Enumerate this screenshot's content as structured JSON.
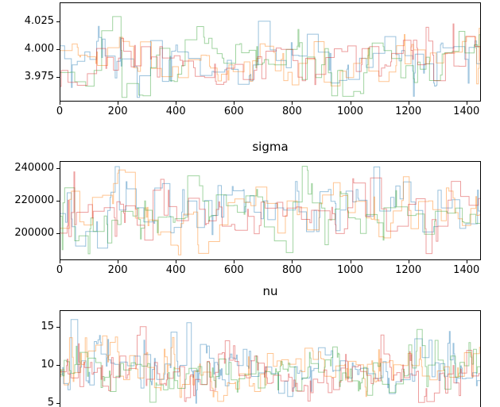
{
  "figure": {
    "background": "#ffffff",
    "n_chains": 4,
    "chain_colors": [
      "#1f77b4",
      "#ff7f0e",
      "#2ca02c",
      "#d62728"
    ],
    "chain_alpha": 0.45,
    "spine_color": "#000000"
  },
  "chart_data": [
    {
      "type": "line",
      "title": "",
      "drawstyle": "steps",
      "legend": "none",
      "grid": false,
      "xlim": [
        0,
        1450
      ],
      "ylim": [
        3.953,
        4.042
      ],
      "xticks": [
        0,
        200,
        400,
        600,
        800,
        1000,
        1200,
        1400
      ],
      "xtick_labels": [
        "0",
        "200",
        "400",
        "600",
        "800",
        "1000",
        "1200",
        "1400"
      ],
      "yticks": [
        3.975,
        4.0,
        4.025
      ],
      "ytick_labels": [
        "3.975",
        "4.000",
        "4.025"
      ],
      "show_x_axis": true,
      "n_samples": 1500,
      "approx_center": 3.995,
      "approx_range": [
        3.96,
        4.035
      ],
      "gen": {
        "seed": 47,
        "center": 3.995,
        "spread": 0.011,
        "clamp": [
          3.957,
          4.038
        ],
        "n_steps": 500,
        "hold_pow": 1.6,
        "hold_max": 14,
        "big_p": 0.1,
        "big_f": 2.0,
        "log": false
      }
    },
    {
      "type": "line",
      "title": "sigma",
      "drawstyle": "steps",
      "legend": "none",
      "grid": false,
      "xlim": [
        0,
        1450
      ],
      "ylim": [
        183400,
        244400
      ],
      "xticks": [
        0,
        200,
        400,
        600,
        800,
        1000,
        1200,
        1400
      ],
      "xtick_labels": [
        "0",
        "200",
        "400",
        "600",
        "800",
        "1000",
        "1200",
        "1400"
      ],
      "yticks": [
        200000,
        220000,
        240000
      ],
      "ytick_labels": [
        "200000",
        "220000",
        "240000"
      ],
      "show_x_axis": true,
      "n_samples": 1500,
      "approx_center": 213000,
      "approx_range": [
        190000,
        240000
      ],
      "gen": {
        "seed": 83,
        "center": 213000,
        "spread": 9000,
        "clamp": [
          186500,
          242000
        ],
        "n_steps": 500,
        "hold_pow": 1.6,
        "hold_max": 14,
        "big_p": 0.1,
        "big_f": 2.0,
        "log": false
      }
    },
    {
      "type": "line",
      "title": "nu",
      "drawstyle": "steps",
      "legend": "none",
      "grid": false,
      "xlim": [
        0,
        1450
      ],
      "ylim": [
        4.2,
        17.2
      ],
      "xticks": [],
      "xtick_labels": [],
      "yticks": [
        5,
        10,
        15
      ],
      "ytick_labels": [
        "5",
        "10",
        "15"
      ],
      "show_x_axis": false,
      "n_samples": 1500,
      "approx_center": 9.2,
      "approx_range": [
        5,
        16
      ],
      "gen": {
        "seed": 129,
        "center": 2.215,
        "spread": 0.155,
        "clamp": [
          1.63,
          2.8
        ],
        "n_steps": 560,
        "hold_pow": 2.0,
        "hold_max": 10,
        "big_p": 0.12,
        "big_f": 1.9,
        "log": true
      }
    }
  ]
}
